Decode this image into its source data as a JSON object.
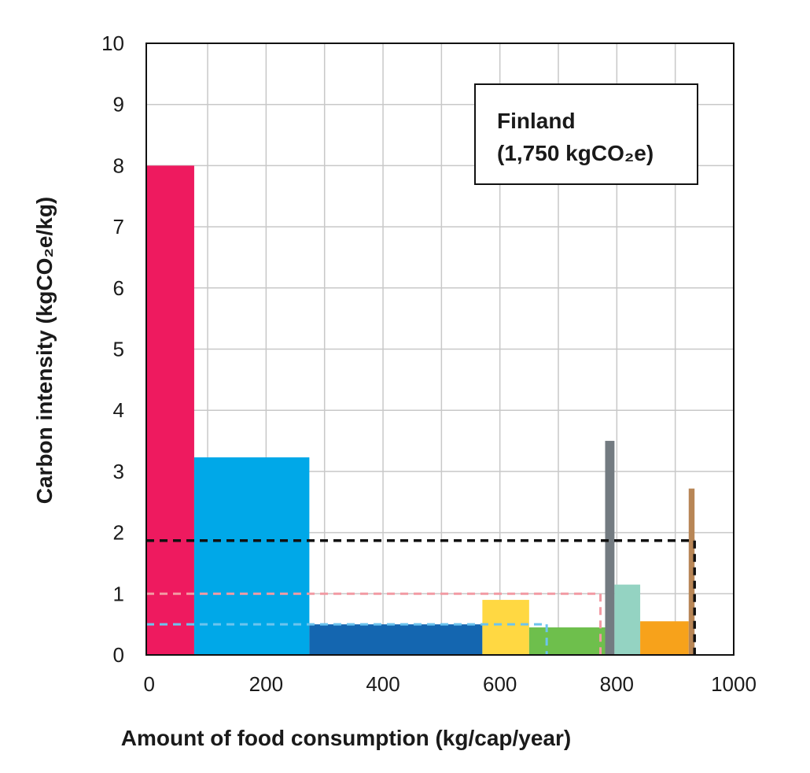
{
  "chart_data": {
    "type": "bar",
    "subtype": "variable-width-bar",
    "xlabel": "Amount of food consumption (kg/cap/year)",
    "ylabel": "Carbon intensity (kgCO₂e/kg)",
    "xlim": [
      -5,
      1000
    ],
    "ylim": [
      0,
      10
    ],
    "xticks": [
      0,
      200,
      400,
      600,
      800,
      1000
    ],
    "yticks": [
      0,
      1,
      2,
      3,
      4,
      5,
      6,
      7,
      8,
      9,
      10
    ],
    "x_minor_grid_step": 100,
    "grid": true,
    "annotation": {
      "line1": "Finland",
      "line2": "(1,750 kgCO₂e)"
    },
    "bars": [
      {
        "x0": -5,
        "x1": 77,
        "value": 8.0,
        "color": "#ee1a5f"
      },
      {
        "x0": 77,
        "x1": 274,
        "value": 3.23,
        "color": "#00a8e8"
      },
      {
        "x0": 274,
        "x1": 570,
        "value": 0.5,
        "color": "#1466b0"
      },
      {
        "x0": 570,
        "x1": 650,
        "value": 0.9,
        "color": "#ffd842"
      },
      {
        "x0": 650,
        "x1": 780,
        "value": 0.45,
        "color": "#6ebf4c"
      },
      {
        "x0": 780,
        "x1": 796,
        "value": 3.5,
        "color": "#737b81"
      },
      {
        "x0": 796,
        "x1": 840,
        "value": 1.15,
        "color": "#94d3c2"
      },
      {
        "x0": 840,
        "x1": 923,
        "value": 0.55,
        "color": "#f7a21b"
      },
      {
        "x0": 923,
        "x1": 933,
        "value": 2.72,
        "color": "#b88656"
      }
    ],
    "reference_lines": [
      {
        "level": 1.87,
        "x_end": 933,
        "color": "#111111"
      },
      {
        "level": 1.0,
        "x_end": 772,
        "color": "#f29aa3"
      },
      {
        "level": 0.5,
        "x_end": 680,
        "color": "#6cc4ee"
      }
    ]
  }
}
